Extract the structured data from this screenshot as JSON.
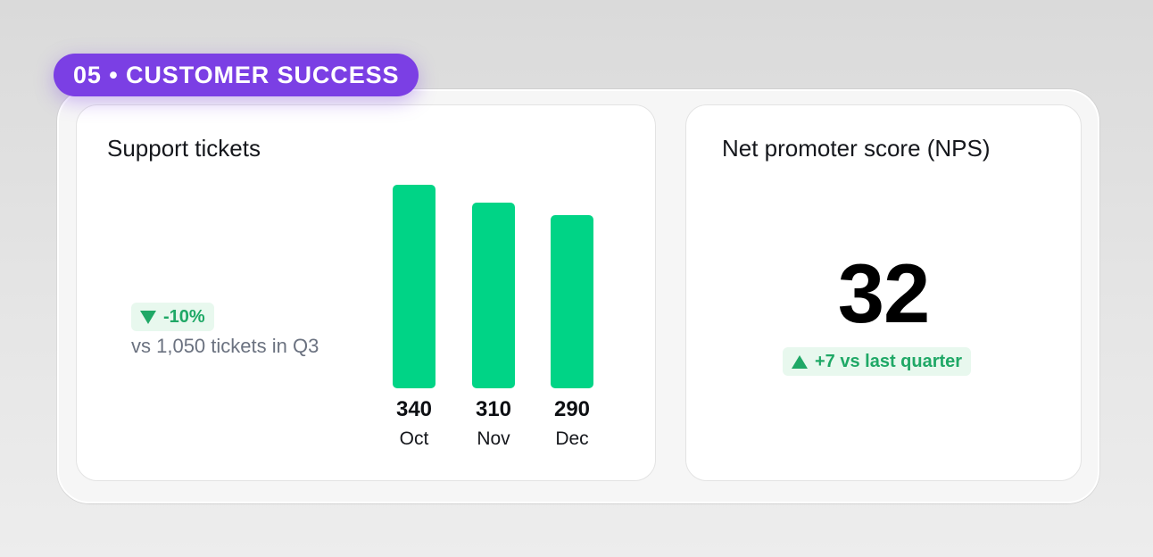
{
  "section": {
    "badge_label": "05 • CUSTOMER SUCCESS"
  },
  "tickets_card": {
    "title": "Support tickets",
    "delta": {
      "direction": "down",
      "label": "-10%",
      "color": "#1fa866"
    },
    "comparison": "vs 1,050 tickets in Q3"
  },
  "nps_card": {
    "title": "Net promoter score (NPS)",
    "value": "32",
    "delta": {
      "direction": "up",
      "label": "+7 vs last quarter",
      "color": "#1fa866"
    }
  },
  "colors": {
    "accent": "#7b3fe4",
    "bar": "#00d486",
    "positive": "#1fa866",
    "positive_bg": "#e8f8ee"
  },
  "chart_data": {
    "type": "bar",
    "categories": [
      "Oct",
      "Nov",
      "Dec"
    ],
    "values": [
      340,
      310,
      290
    ],
    "value_labels": [
      "340",
      "310",
      "290"
    ],
    "title": "",
    "xlabel": "",
    "ylabel": "",
    "ylim": [
      0,
      340
    ],
    "grid": false
  }
}
